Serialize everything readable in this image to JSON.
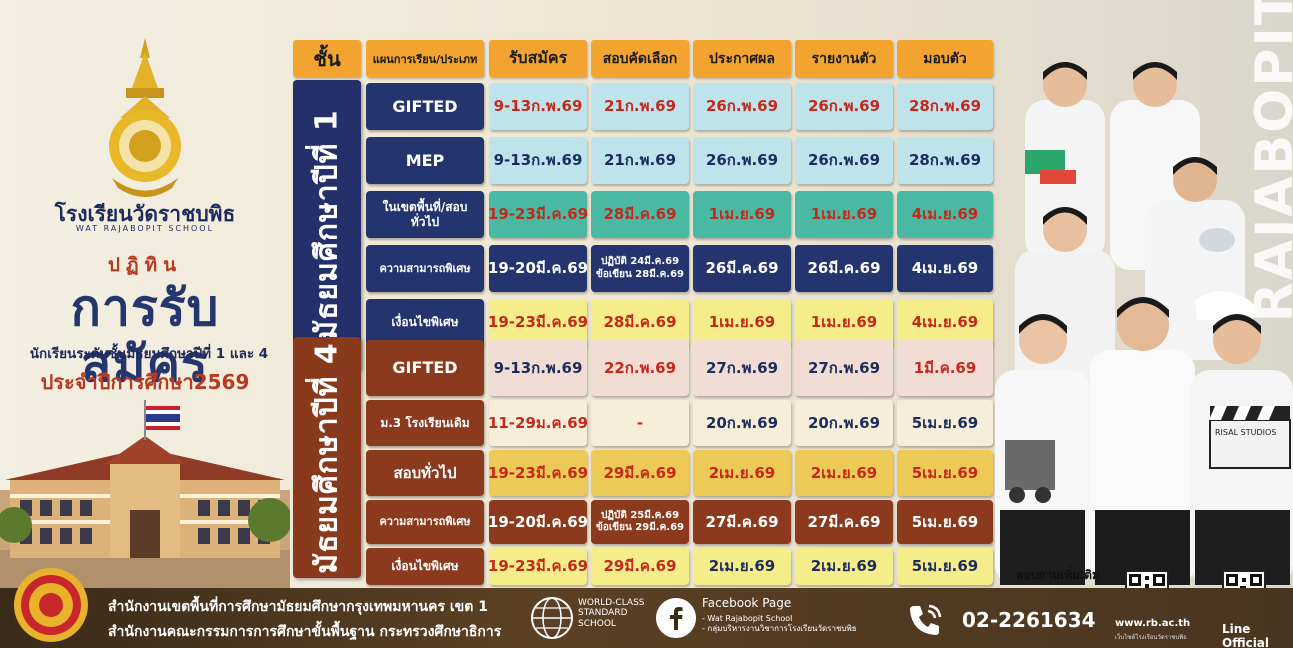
{
  "branding": {
    "school_th": "โรงเรียนวัดราชบพิธ",
    "school_en": "WAT RAJABOPIT SCHOOL",
    "calendar_label": "ปฏิทิน",
    "main_title": "การรับสมัคร",
    "sub_title": "นักเรียนระดับชั้นมัธยมศึกษาปีที่ 1 และ 4",
    "year_title": "ประจำปีการศึกษา2569"
  },
  "table": {
    "headers": {
      "grade": "ชั้น",
      "plan": "แผนการเรียน/ประเภท",
      "apply": "รับสมัคร",
      "exam": "สอบคัดเลือก",
      "announce": "ประกาศผล",
      "report": "รายงานตัว",
      "enroll": "มอบตัว"
    },
    "m1_label": "มัธยมศึกษาปีที่ 1",
    "m4_label": "มัธยมศึกษาปีที่ 4",
    "m1_rows": [
      {
        "plan": "GIFTED",
        "apply": "9-13ก.พ.69",
        "exam": "21ก.พ.69",
        "announce": "26ก.พ.69",
        "report": "26ก.พ.69",
        "enroll": "28ก.พ.69"
      },
      {
        "plan": "MEP",
        "apply": "9-13ก.พ.69",
        "exam": "21ก.พ.69",
        "announce": "26ก.พ.69",
        "report": "26ก.พ.69",
        "enroll": "28ก.พ.69"
      },
      {
        "plan": "ในเขตพื้นที่/สอบทั่วไป",
        "apply": "19-23มี.ค.69",
        "exam": "28มี.ค.69",
        "announce": "1เม.ย.69",
        "report": "1เม.ย.69",
        "enroll": "4เม.ย.69"
      },
      {
        "plan": "ความสามารถพิเศษ",
        "apply": "19-20มี.ค.69",
        "exam_practical": "ปฏิบัติ 24มี.ค.69",
        "exam_written": "ข้อเขียน 28มี.ค.69",
        "announce": "26มี.ค.69",
        "report": "26มี.ค.69",
        "enroll": "4เม.ย.69"
      },
      {
        "plan": "เงื่อนไขพิเศษ",
        "apply": "19-23มี.ค.69",
        "exam": "28มี.ค.69",
        "announce": "1เม.ย.69",
        "report": "1เม.ย.69",
        "enroll": "4เม.ย.69"
      }
    ],
    "m4_rows": [
      {
        "plan": "GIFTED",
        "apply": "9-13ก.พ.69",
        "exam": "22ก.พ.69",
        "announce": "27ก.พ.69",
        "report": "27ก.พ.69",
        "enroll": "1มี.ค.69"
      },
      {
        "plan": "ม.3 โรงเรียนเดิม",
        "apply": "11-29ม.ค.69",
        "exam": "-",
        "announce": "20ก.พ.69",
        "report": "20ก.พ.69",
        "enroll": "5เม.ย.69"
      },
      {
        "plan": "สอบทั่วไป",
        "apply": "19-23มี.ค.69",
        "exam": "29มี.ค.69",
        "announce": "2เม.ย.69",
        "report": "2เม.ย.69",
        "enroll": "5เม.ย.69"
      },
      {
        "plan": "ความสามารถพิเศษ",
        "apply": "19-20มี.ค.69",
        "exam_practical": "ปฏิบัติ 25มี.ค.69",
        "exam_written": "ข้อเขียน 29มี.ค.69",
        "announce": "27มี.ค.69",
        "report": "27มี.ค.69",
        "enroll": "5เม.ย.69"
      },
      {
        "plan": "เงื่อนไขพิเศษ",
        "apply": "19-23มี.ค.69",
        "exam": "29มี.ค.69",
        "announce": "2เม.ย.69",
        "report": "2เม.ย.69",
        "enroll": "5เม.ย.69"
      }
    ]
  },
  "right": {
    "vertical_brand": "RAJABOPIT",
    "contact_more": "สอบถามเพิ่มเติม",
    "board_text": "RISAL STUDIOS"
  },
  "footer": {
    "line1": "สำนักงานเขตพื้นที่การศึกษามัธยมศึกษากรุงเทพมหานคร เขต 1",
    "line2": "สำนักงานคณะกรรมการการศึกษาขั้นพื้นฐาน กระทรวงศึกษาธิการ",
    "wcs_line1": "WORLD-CLASS",
    "wcs_line2": "STANDARD",
    "wcs_line3": "SCHOOL",
    "fb_title": "Facebook Page",
    "fb_sub1": "- Wat Rajabopit School",
    "fb_sub2": "- กลุ่มบริหารงานวิชาการโรงเรียนวัดราชบพิธ",
    "phone": "02-2261634",
    "website": "www.rb.ac.th",
    "website_sub": "เว็บไซต์โรงเรียนวัดราชบพิธ",
    "line_official": "Line Official"
  },
  "colors": {
    "navy": "#24346e",
    "rust": "#8b3a1d",
    "orange_header": "#f2a330",
    "red_text": "#c4291c"
  }
}
